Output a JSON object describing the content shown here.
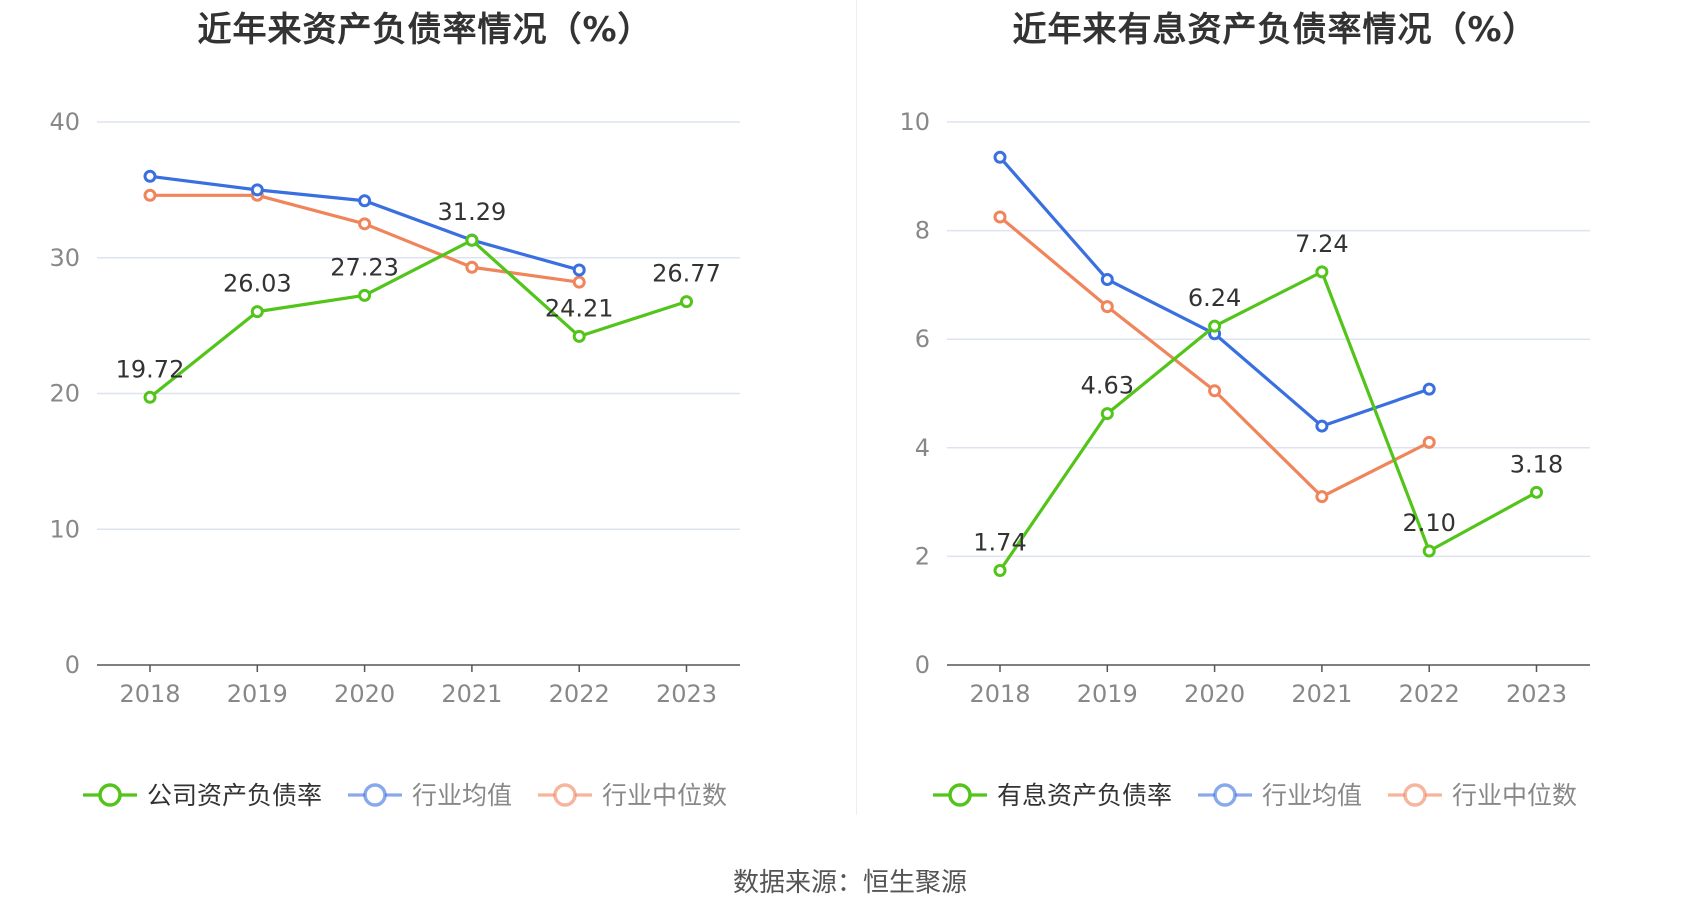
{
  "footer": {
    "source": "数据来源：恒生聚源"
  },
  "chart_data": [
    {
      "type": "line",
      "title": "近年来资产负债率情况（%）",
      "x": [
        "2018",
        "2019",
        "2020",
        "2021",
        "2022",
        "2023"
      ],
      "ylim": [
        0,
        40
      ],
      "yticks": [
        0,
        10,
        20,
        30,
        40
      ],
      "grid": true,
      "legend_position": "bottom",
      "series": [
        {
          "name": "公司资产负债率",
          "color": "#52c41a",
          "values": [
            19.72,
            26.03,
            27.23,
            31.29,
            24.21,
            26.77
          ],
          "labels": true
        },
        {
          "name": "行业均值",
          "color": "#3a6fe0",
          "values": [
            36.0,
            35.0,
            34.2,
            31.3,
            29.1,
            null
          ],
          "labels": false
        },
        {
          "name": "行业中位数",
          "color": "#f0845a",
          "values": [
            34.6,
            34.6,
            32.5,
            29.3,
            28.2,
            null
          ],
          "labels": false
        }
      ]
    },
    {
      "type": "line",
      "title": "近年来有息资产负债率情况（%）",
      "x": [
        "2018",
        "2019",
        "2020",
        "2021",
        "2022",
        "2023"
      ],
      "ylim": [
        0,
        10
      ],
      "yticks": [
        0,
        2,
        4,
        6,
        8,
        10
      ],
      "grid": true,
      "legend_position": "bottom",
      "series": [
        {
          "name": "有息资产负债率",
          "color": "#52c41a",
          "values": [
            1.74,
            4.63,
            6.24,
            7.24,
            2.1,
            3.18
          ],
          "labels": true
        },
        {
          "name": "行业均值",
          "color": "#3a6fe0",
          "values": [
            9.35,
            7.1,
            6.1,
            4.4,
            5.08,
            null
          ],
          "labels": false
        },
        {
          "name": "行业中位数",
          "color": "#f0845a",
          "values": [
            8.25,
            6.6,
            5.05,
            3.1,
            4.1,
            null
          ],
          "labels": false
        }
      ]
    }
  ]
}
